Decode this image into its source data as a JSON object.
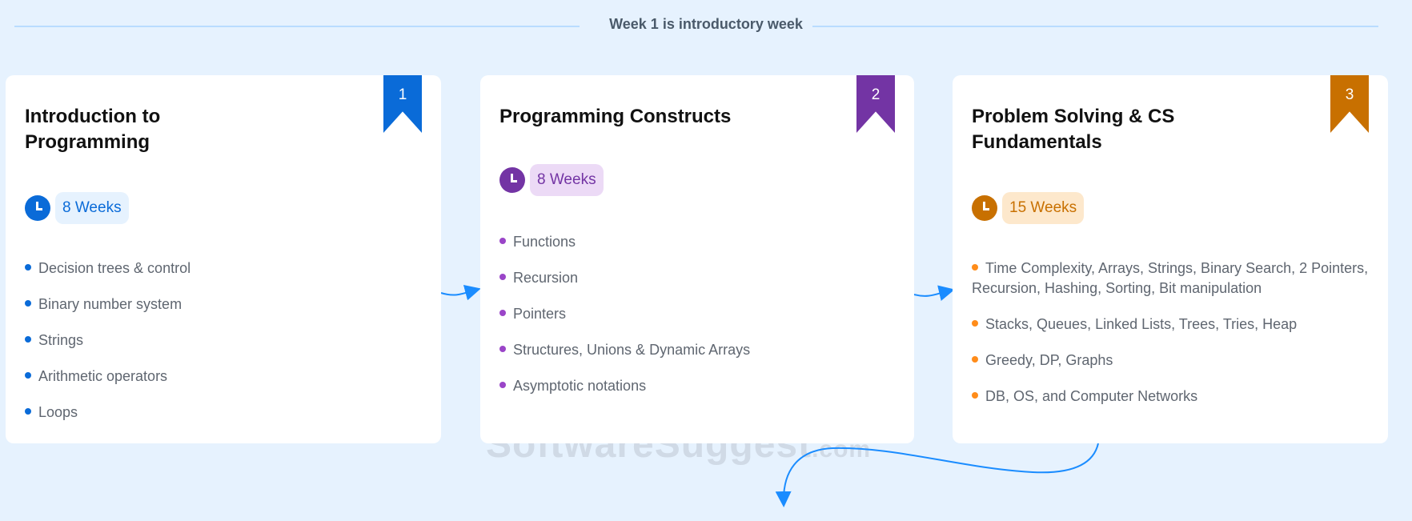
{
  "header": {
    "note": "Week 1 is introductory week"
  },
  "watermark": {
    "brand": "SoftwareSuggest",
    "suffix": ".com"
  },
  "cards": [
    {
      "number": "1",
      "title": "Introduction to Programming",
      "duration": "8 Weeks",
      "accent": "#0a6bd8",
      "pill_bg": "#e6f2fe",
      "clock_icon": "clock-icon",
      "topics": [
        "Decision trees & control",
        "Binary number system",
        "Strings",
        "Arithmetic operators",
        "Loops"
      ]
    },
    {
      "number": "2",
      "title": "Programming Constructs",
      "duration": "8 Weeks",
      "accent": "#7334a4",
      "pill_bg": "#ecdaf6",
      "clock_icon": "clock-icon",
      "topics": [
        "Functions",
        "Recursion",
        "Pointers",
        "Structures, Unions & Dynamic Arrays",
        "Asymptotic notations"
      ]
    },
    {
      "number": "3",
      "title": "Problem Solving & CS Fundamentals",
      "duration": "15 Weeks",
      "accent": "#c87000",
      "pill_bg": "#fde8cc",
      "clock_icon": "clock-icon",
      "topics": [
        "Time Complexity, Arrays, Strings, Binary Search, 2 Pointers, Recursion, Hashing, Sorting, Bit manipulation",
        "Stacks, Queues, Linked Lists, Trees, Tries, Heap",
        "Greedy, DP, Graphs",
        "DB, OS, and Computer Networks"
      ]
    }
  ],
  "colors": {
    "arrow": "#1a8cff",
    "dot1": "#0a6bd8",
    "dot2": "#9a45c8",
    "dot3": "#ff8c1a"
  }
}
